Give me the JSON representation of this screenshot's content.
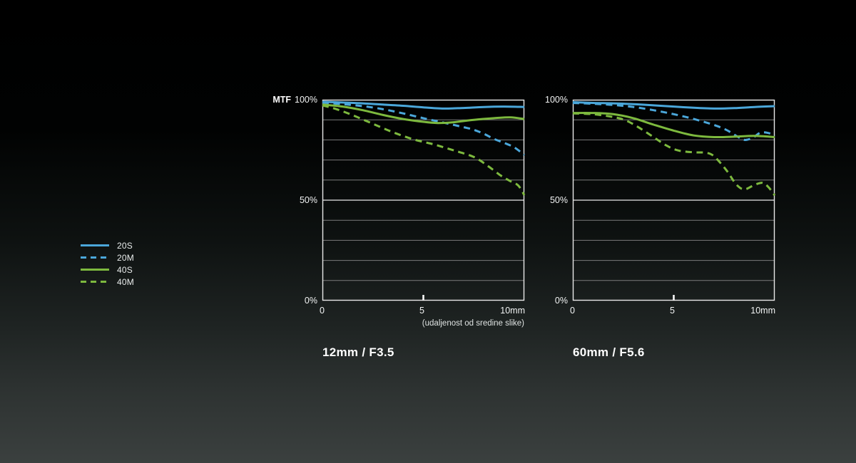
{
  "page": {
    "background_top": "#000000",
    "background_bottom": "#3b403f"
  },
  "colors": {
    "blue": "#4ba7da",
    "green": "#7db93e",
    "grid_minor": "#7a7a7a",
    "grid_major": "#e9e9e9"
  },
  "legend": {
    "items": [
      {
        "label": "20S",
        "color": "#4ba7da",
        "dashed": false
      },
      {
        "label": "20M",
        "color": "#4ba7da",
        "dashed": true
      },
      {
        "label": "40S",
        "color": "#7db93e",
        "dashed": false
      },
      {
        "label": "40M",
        "color": "#7db93e",
        "dashed": true
      }
    ]
  },
  "chart_data": [
    {
      "type": "line",
      "title": "12mm / F3.5",
      "ylabel": "MTF",
      "y_ticks": {
        "top": "100%",
        "mid": "50%",
        "bottom": "0%"
      },
      "x_ticks": {
        "left": "0",
        "mid": "5",
        "right": "10mm"
      },
      "caption": "(udaljenost od sredine slike)",
      "xlim": [
        0,
        10
      ],
      "ylim": [
        0,
        100
      ],
      "grid": "horizontal every 10%, bright at 0/50/100",
      "series": [
        {
          "name": "20S",
          "color": "#4ba7da",
          "dashed": false,
          "points": [
            [
              0,
              99
            ],
            [
              1,
              98.6
            ],
            [
              2,
              98.2
            ],
            [
              3,
              97.6
            ],
            [
              4,
              97
            ],
            [
              5,
              96.2
            ],
            [
              6,
              95.6
            ],
            [
              7,
              95.9
            ],
            [
              8,
              96.4
            ],
            [
              9,
              96.6
            ],
            [
              10,
              96.4
            ]
          ]
        },
        {
          "name": "20M",
          "color": "#4ba7da",
          "dashed": true,
          "points": [
            [
              0,
              98.6
            ],
            [
              1,
              97.8
            ],
            [
              2,
              96.8
            ],
            [
              3,
              95.3
            ],
            [
              4,
              93.2
            ],
            [
              5,
              90.8
            ],
            [
              6,
              88.6
            ],
            [
              7,
              86.3
            ],
            [
              7.5,
              85
            ],
            [
              8,
              83
            ],
            [
              8.5,
              80.5
            ],
            [
              9,
              78.5
            ],
            [
              9.5,
              76.3
            ],
            [
              10,
              72.5
            ]
          ]
        },
        {
          "name": "40S",
          "color": "#7db93e",
          "dashed": false,
          "points": [
            [
              0,
              97.6
            ],
            [
              1,
              96.6
            ],
            [
              2,
              94.8
            ],
            [
              3,
              92.4
            ],
            [
              4,
              90.4
            ],
            [
              5,
              89
            ],
            [
              5.7,
              88.4
            ],
            [
              6.5,
              88.8
            ],
            [
              7.5,
              90
            ],
            [
              8.5,
              90.8
            ],
            [
              9.3,
              91.2
            ],
            [
              10,
              90.4
            ]
          ]
        },
        {
          "name": "40M",
          "color": "#7db93e",
          "dashed": true,
          "points": [
            [
              0,
              97.2
            ],
            [
              0.7,
              95.3
            ],
            [
              1.5,
              92.3
            ],
            [
              2.5,
              88
            ],
            [
              3.5,
              83.8
            ],
            [
              4.5,
              80.3
            ],
            [
              5.5,
              77.8
            ],
            [
              6.5,
              74.8
            ],
            [
              7.5,
              71.5
            ],
            [
              8.2,
              67
            ],
            [
              8.8,
              62.5
            ],
            [
              9.3,
              59.5
            ],
            [
              9.7,
              57.3
            ],
            [
              10,
              52.5
            ]
          ]
        }
      ]
    },
    {
      "type": "line",
      "title": "60mm / F5.6",
      "y_ticks": {
        "top": "100%",
        "mid": "50%",
        "bottom": "0%"
      },
      "x_ticks": {
        "left": "0",
        "mid": "5",
        "right": "10mm"
      },
      "caption": "",
      "xlim": [
        0,
        10
      ],
      "ylim": [
        0,
        100
      ],
      "grid": "horizontal every 10%, bright at 0/50/100",
      "series": [
        {
          "name": "20S",
          "color": "#4ba7da",
          "dashed": false,
          "points": [
            [
              0,
              98.8
            ],
            [
              1,
              98.4
            ],
            [
              2,
              98.2
            ],
            [
              3,
              97.8
            ],
            [
              4,
              97.2
            ],
            [
              5,
              96.6
            ],
            [
              6,
              96
            ],
            [
              7,
              95.6
            ],
            [
              8,
              95.8
            ],
            [
              9,
              96.4
            ],
            [
              10,
              96.8
            ]
          ]
        },
        {
          "name": "20M",
          "color": "#4ba7da",
          "dashed": true,
          "points": [
            [
              0,
              98.4
            ],
            [
              1,
              98
            ],
            [
              2,
              97.4
            ],
            [
              3,
              96.4
            ],
            [
              4,
              94.8
            ],
            [
              5,
              92.8
            ],
            [
              6,
              90.4
            ],
            [
              7,
              87.4
            ],
            [
              7.6,
              85
            ],
            [
              8.1,
              82
            ],
            [
              8.5,
              80
            ],
            [
              8.9,
              81
            ],
            [
              9.3,
              83.6
            ],
            [
              9.7,
              83.4
            ],
            [
              10,
              82
            ]
          ]
        },
        {
          "name": "40S",
          "color": "#7db93e",
          "dashed": false,
          "points": [
            [
              0,
              93.4
            ],
            [
              1,
              93.4
            ],
            [
              2,
              92.8
            ],
            [
              3,
              90.8
            ],
            [
              4,
              87.6
            ],
            [
              5,
              84.6
            ],
            [
              6,
              82.2
            ],
            [
              7,
              81.4
            ],
            [
              8,
              81.6
            ],
            [
              9,
              82
            ],
            [
              10,
              81.4
            ]
          ]
        },
        {
          "name": "40M",
          "color": "#7db93e",
          "dashed": true,
          "points": [
            [
              0,
              93.2
            ],
            [
              1,
              92.8
            ],
            [
              2,
              91.4
            ],
            [
              2.6,
              89.8
            ],
            [
              3.2,
              86.6
            ],
            [
              4,
              81.4
            ],
            [
              4.6,
              77.4
            ],
            [
              5.2,
              74.8
            ],
            [
              6,
              73.8
            ],
            [
              6.6,
              73.6
            ],
            [
              7,
              71.8
            ],
            [
              7.6,
              65
            ],
            [
              8.1,
              57.8
            ],
            [
              8.5,
              55.4
            ],
            [
              9,
              57.6
            ],
            [
              9.4,
              58.6
            ],
            [
              9.7,
              56.4
            ],
            [
              10,
              52.4
            ]
          ]
        }
      ]
    }
  ]
}
